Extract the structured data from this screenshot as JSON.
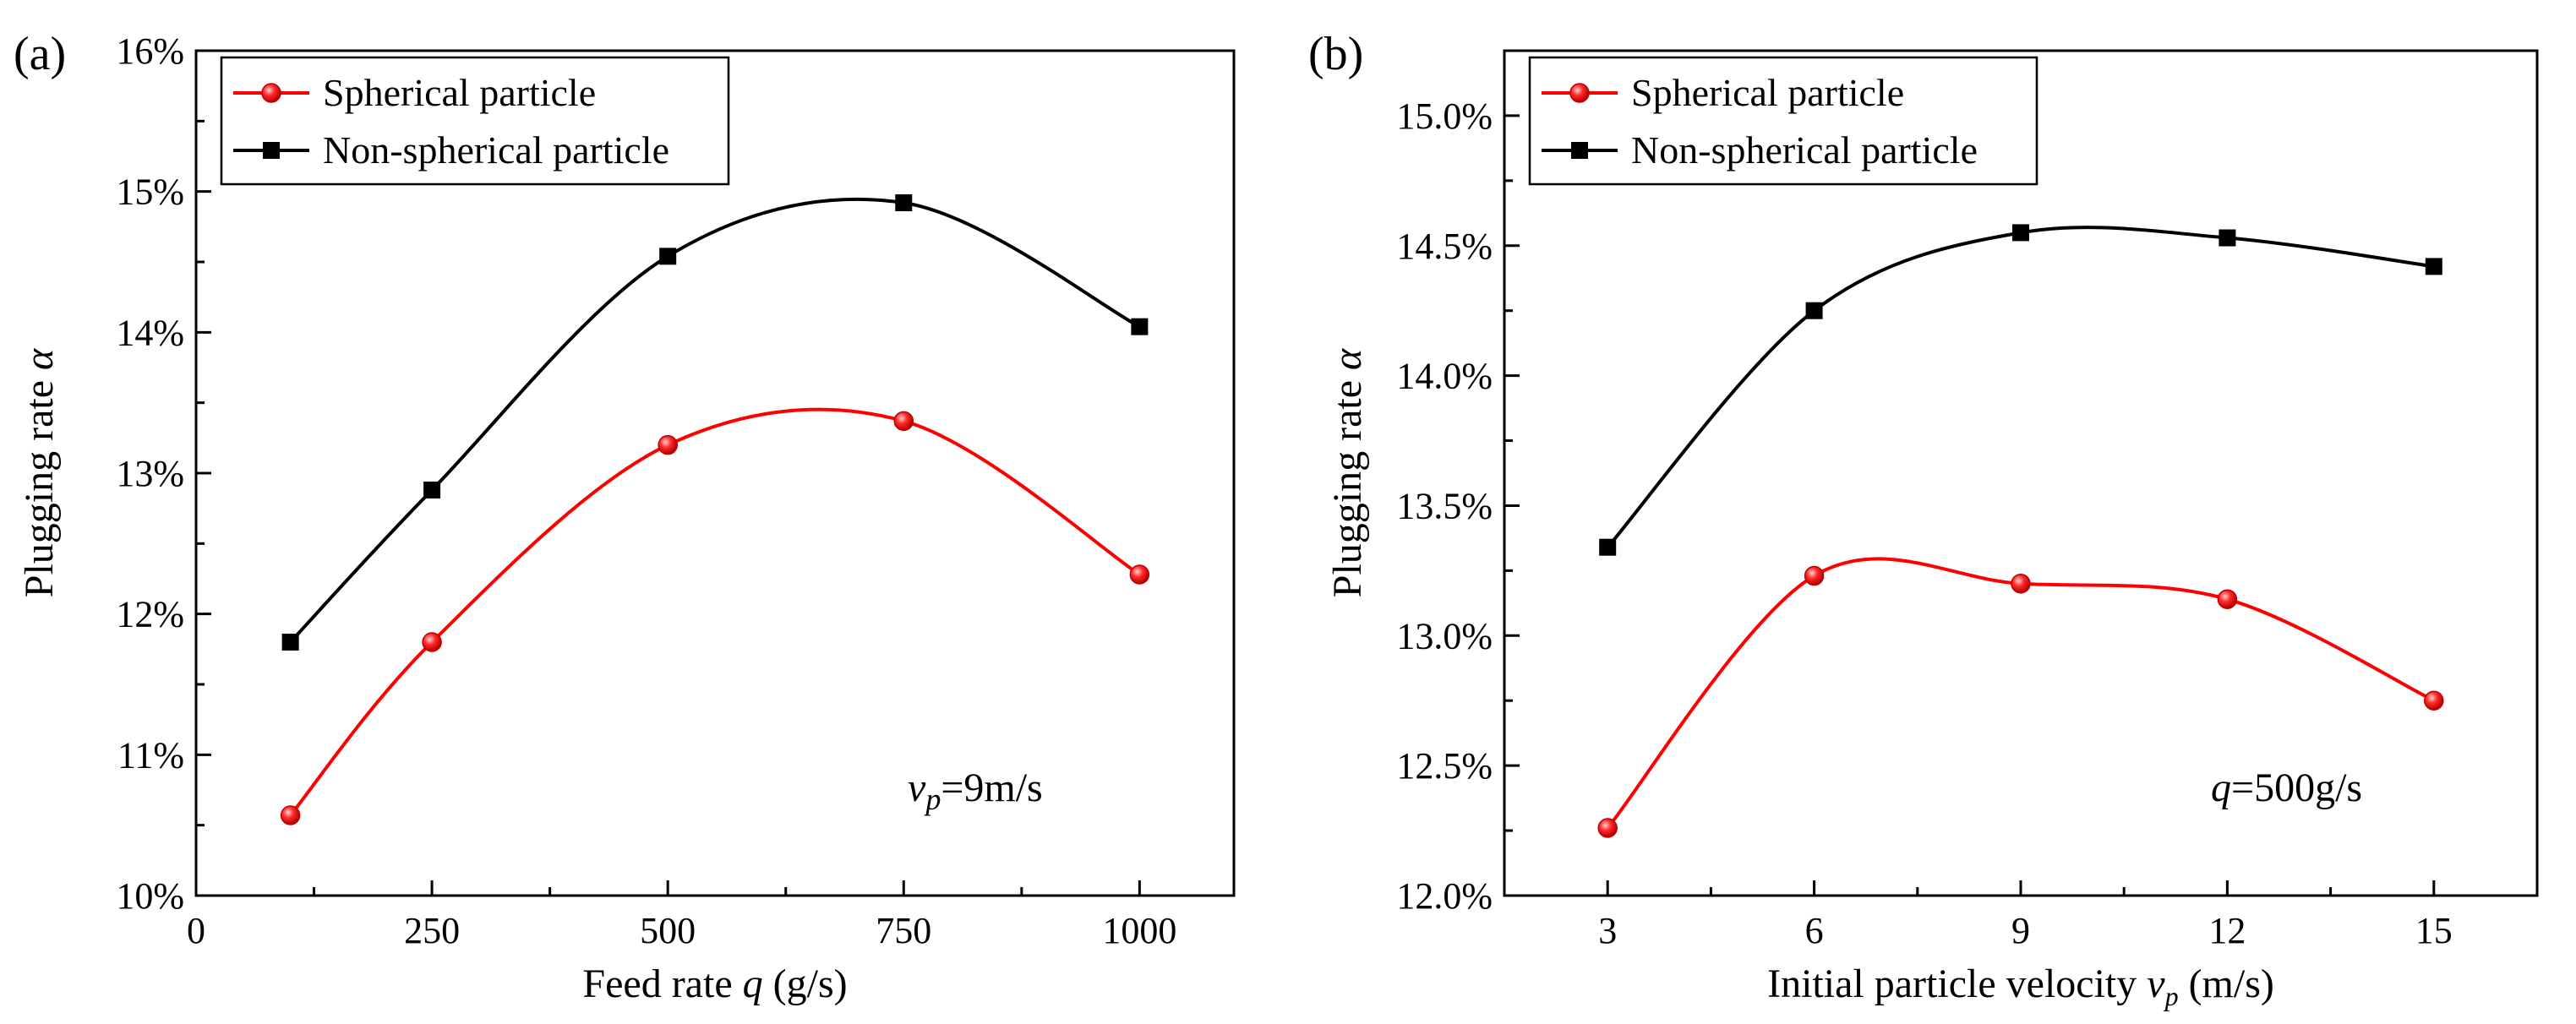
{
  "chart_data": [
    {
      "type": "line",
      "panel_label": "(a)",
      "x_label": {
        "main": "Feed rate ",
        "var": "q",
        "sub": "",
        "unit": " (g/s)"
      },
      "y_label": {
        "main": "Plugging rate ",
        "var": "α"
      },
      "xlim": [
        0,
        1100
      ],
      "ylim": [
        10,
        16
      ],
      "x_ticks": [
        0,
        250,
        500,
        750,
        1000
      ],
      "y_ticks": [
        10,
        11,
        12,
        13,
        14,
        15,
        16
      ],
      "y_tick_decimals": 0,
      "y_unit": "%",
      "annotation": {
        "var": "v",
        "sub": "p",
        "text": "=9m/s"
      },
      "legend_position": "top-left",
      "series": [
        {
          "name": "Spherical particle",
          "color": "#ff0000",
          "marker": "circle",
          "x": [
            100,
            250,
            500,
            750,
            1000
          ],
          "y": [
            10.57,
            11.8,
            13.2,
            13.37,
            12.28
          ]
        },
        {
          "name": "Non-spherical particle",
          "color": "#000000",
          "marker": "square",
          "x": [
            100,
            250,
            500,
            750,
            1000
          ],
          "y": [
            11.8,
            12.88,
            14.54,
            14.92,
            14.04
          ]
        }
      ]
    },
    {
      "type": "line",
      "panel_label": "(b)",
      "x_label": {
        "main": "Initial particle velocity ",
        "var": "v",
        "sub": "p",
        "unit": " (m/s)"
      },
      "y_label": {
        "main": "Plugging rate ",
        "var": "α"
      },
      "xlim": [
        1.5,
        16.5
      ],
      "ylim": [
        12.0,
        15.25
      ],
      "x_ticks": [
        3,
        6,
        9,
        12,
        15
      ],
      "y_ticks": [
        12.0,
        12.5,
        13.0,
        13.5,
        14.0,
        14.5,
        15.0
      ],
      "y_tick_decimals": 1,
      "y_unit": "%",
      "annotation": {
        "var": "q",
        "sub": "",
        "text": "=500g/s"
      },
      "legend_position": "top-left",
      "series": [
        {
          "name": "Spherical particle",
          "color": "#ff0000",
          "marker": "circle",
          "x": [
            3,
            6,
            9,
            12,
            15
          ],
          "y": [
            12.26,
            13.23,
            13.2,
            13.14,
            12.75
          ]
        },
        {
          "name": "Non-spherical particle",
          "color": "#000000",
          "marker": "square",
          "x": [
            3,
            6,
            9,
            12,
            15
          ],
          "y": [
            13.34,
            14.25,
            14.55,
            14.53,
            14.42
          ]
        }
      ]
    }
  ]
}
